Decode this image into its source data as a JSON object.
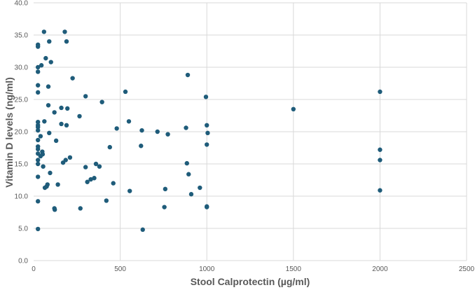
{
  "chart_data": {
    "type": "scatter",
    "title": "",
    "xlabel": "Stool Calprotectin (µg/ml)",
    "ylabel": "Vitamin D levels (ng/ml)",
    "xlim": [
      0,
      2500
    ],
    "ylim": [
      0,
      40
    ],
    "xticks": [
      "0",
      "500",
      "1000",
      "1500",
      "2000",
      "2500"
    ],
    "yticks": [
      "0.0",
      "5.0",
      "10.0",
      "15.0",
      "20.0",
      "25.0",
      "30.0",
      "35.0",
      "40.0"
    ],
    "grid": true,
    "legend": "none",
    "marker_color": "#1f5c7a",
    "gridline_color": "#d9d9d9",
    "series": [
      {
        "points": [
          [
            25,
            33.5
          ],
          [
            25,
            33.2
          ],
          [
            25,
            30.0
          ],
          [
            25,
            29.3
          ],
          [
            25,
            27.2
          ],
          [
            25,
            26.1
          ],
          [
            25,
            21.5
          ],
          [
            25,
            21.0
          ],
          [
            25,
            20.7
          ],
          [
            25,
            20.2
          ],
          [
            25,
            18.7
          ],
          [
            25,
            17.7
          ],
          [
            25,
            17.3
          ],
          [
            25,
            16.6
          ],
          [
            25,
            15.6
          ],
          [
            25,
            15.0
          ],
          [
            25,
            13.0
          ],
          [
            25,
            9.2
          ],
          [
            25,
            4.9
          ],
          [
            40,
            19.3
          ],
          [
            40,
            16.2
          ],
          [
            45,
            30.3
          ],
          [
            50,
            16.9
          ],
          [
            52,
            16.5
          ],
          [
            55,
            14.6
          ],
          [
            60,
            35.5
          ],
          [
            62,
            21.6
          ],
          [
            65,
            11.3
          ],
          [
            70,
            31.4
          ],
          [
            75,
            11.5
          ],
          [
            80,
            11.8
          ],
          [
            85,
            24.1
          ],
          [
            85,
            27.0
          ],
          [
            90,
            19.8
          ],
          [
            90,
            34.0
          ],
          [
            95,
            13.6
          ],
          [
            100,
            30.8
          ],
          [
            120,
            23.0
          ],
          [
            120,
            8.1
          ],
          [
            122,
            7.9
          ],
          [
            130,
            18.6
          ],
          [
            140,
            11.8
          ],
          [
            160,
            23.7
          ],
          [
            160,
            21.2
          ],
          [
            170,
            15.2
          ],
          [
            180,
            35.5
          ],
          [
            185,
            15.6
          ],
          [
            190,
            21.0
          ],
          [
            190,
            34.0
          ],
          [
            195,
            23.6
          ],
          [
            210,
            16.0
          ],
          [
            225,
            28.3
          ],
          [
            265,
            22.4
          ],
          [
            270,
            8.1
          ],
          [
            300,
            25.5
          ],
          [
            300,
            14.5
          ],
          [
            310,
            12.2
          ],
          [
            330,
            12.6
          ],
          [
            350,
            12.8
          ],
          [
            360,
            15.0
          ],
          [
            380,
            14.6
          ],
          [
            395,
            24.6
          ],
          [
            420,
            9.3
          ],
          [
            440,
            17.6
          ],
          [
            460,
            12.0
          ],
          [
            480,
            20.5
          ],
          [
            530,
            26.2
          ],
          [
            550,
            21.6
          ],
          [
            555,
            10.8
          ],
          [
            620,
            17.8
          ],
          [
            625,
            20.2
          ],
          [
            630,
            4.8
          ],
          [
            715,
            20.0
          ],
          [
            755,
            8.3
          ],
          [
            760,
            11.1
          ],
          [
            775,
            19.6
          ],
          [
            880,
            20.6
          ],
          [
            885,
            15.1
          ],
          [
            890,
            28.8
          ],
          [
            895,
            13.4
          ],
          [
            910,
            10.3
          ],
          [
            960,
            11.3
          ],
          [
            995,
            25.4
          ],
          [
            1000,
            21.0
          ],
          [
            1000,
            18.0
          ],
          [
            1000,
            8.4
          ],
          [
            1000,
            8.3
          ],
          [
            1005,
            19.8
          ],
          [
            1500,
            23.5
          ],
          [
            2000,
            26.2
          ],
          [
            2000,
            17.2
          ],
          [
            2000,
            15.6
          ],
          [
            2000,
            10.9
          ]
        ]
      }
    ]
  }
}
